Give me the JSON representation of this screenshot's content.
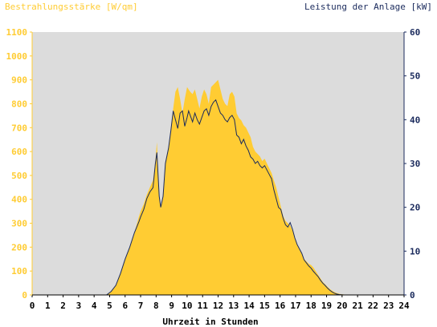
{
  "colors": {
    "irradiance": "#ffcc33",
    "power": "#1a2a5c",
    "plot_bg": "#dcdcdc",
    "left_axis_text": "#ffcc33",
    "right_axis_text": "#1a2a5c"
  },
  "chart_data": {
    "type": "area",
    "left_title": "Bestrahlungsstärke [W/qm]",
    "right_title": "Leistung der Anlage [kW]",
    "xlabel": "Uhrzeit in Stunden",
    "xlim": [
      0,
      24
    ],
    "y_left_lim": [
      0,
      1100
    ],
    "y_right_lim": [
      0,
      60
    ],
    "x_ticks": [
      "0",
      "1",
      "2",
      "3",
      "4",
      "5",
      "6",
      "7",
      "8",
      "9",
      "10",
      "11",
      "12",
      "13",
      "14",
      "15",
      "16",
      "17",
      "18",
      "19",
      "20",
      "21",
      "22",
      "23",
      "24"
    ],
    "y_left_ticks": [
      "0",
      "100",
      "200",
      "300",
      "400",
      "500",
      "600",
      "700",
      "800",
      "900",
      "1000",
      "1100"
    ],
    "y_right_ticks": [
      "0",
      "10",
      "20",
      "30",
      "40",
      "50",
      "60"
    ],
    "grid": false,
    "series": [
      {
        "name": "Bestrahlungsstärke [W/qm]",
        "axis": "left",
        "style": "filled-area",
        "x": [
          0,
          4.8,
          5.1,
          5.4,
          5.7,
          6.0,
          6.3,
          6.6,
          6.9,
          7.0,
          7.2,
          7.4,
          7.6,
          7.8,
          7.95,
          8.05,
          8.2,
          8.3,
          8.45,
          8.6,
          8.8,
          8.95,
          9.1,
          9.25,
          9.4,
          9.55,
          9.7,
          9.85,
          10.0,
          10.1,
          10.2,
          10.35,
          10.5,
          10.65,
          10.8,
          10.95,
          11.1,
          11.25,
          11.4,
          11.55,
          11.7,
          11.85,
          12.0,
          12.15,
          12.3,
          12.45,
          12.6,
          12.75,
          12.9,
          13.05,
          13.2,
          13.35,
          13.5,
          13.65,
          13.8,
          13.95,
          14.1,
          14.25,
          14.4,
          14.55,
          14.7,
          14.85,
          15.0,
          15.15,
          15.3,
          15.45,
          15.6,
          15.75,
          15.9,
          16.05,
          16.2,
          16.35,
          16.5,
          16.65,
          16.8,
          16.95,
          17.1,
          17.25,
          17.4,
          17.55,
          17.7,
          17.85,
          18.0,
          18.15,
          18.3,
          18.45,
          18.6,
          18.75,
          18.9,
          19.05,
          19.2,
          19.35,
          19.5,
          19.65,
          19.8,
          19.95,
          20.1,
          20.3,
          24
        ],
        "y": [
          0,
          0,
          15,
          40,
          90,
          150,
          200,
          260,
          330,
          350,
          380,
          420,
          450,
          480,
          560,
          640,
          420,
          360,
          420,
          560,
          620,
          700,
          780,
          850,
          870,
          820,
          760,
          820,
          870,
          860,
          850,
          840,
          860,
          820,
          780,
          830,
          860,
          840,
          800,
          870,
          880,
          890,
          900,
          860,
          820,
          800,
          790,
          840,
          850,
          830,
          760,
          740,
          730,
          710,
          700,
          680,
          660,
          620,
          600,
          590,
          580,
          560,
          570,
          550,
          530,
          510,
          480,
          450,
          410,
          370,
          330,
          310,
          300,
          290,
          270,
          240,
          210,
          190,
          170,
          150,
          140,
          130,
          125,
          115,
          100,
          85,
          70,
          55,
          45,
          35,
          25,
          18,
          12,
          8,
          5,
          3,
          2,
          0,
          0
        ]
      },
      {
        "name": "Leistung der Anlage [kW]",
        "axis": "right",
        "style": "line",
        "x": [
          0,
          4.8,
          5.1,
          5.4,
          5.7,
          6.0,
          6.3,
          6.6,
          6.9,
          7.0,
          7.2,
          7.4,
          7.6,
          7.8,
          7.95,
          8.05,
          8.2,
          8.3,
          8.45,
          8.6,
          8.8,
          8.95,
          9.1,
          9.25,
          9.4,
          9.55,
          9.7,
          9.85,
          10.0,
          10.1,
          10.2,
          10.35,
          10.5,
          10.65,
          10.8,
          10.95,
          11.1,
          11.25,
          11.4,
          11.55,
          11.7,
          11.85,
          12.0,
          12.15,
          12.3,
          12.45,
          12.6,
          12.75,
          12.9,
          13.05,
          13.2,
          13.35,
          13.5,
          13.65,
          13.8,
          13.95,
          14.1,
          14.25,
          14.4,
          14.55,
          14.7,
          14.85,
          15.0,
          15.15,
          15.3,
          15.45,
          15.6,
          15.75,
          15.9,
          16.05,
          16.2,
          16.35,
          16.5,
          16.65,
          16.8,
          16.95,
          17.1,
          17.25,
          17.4,
          17.55,
          17.7,
          17.85,
          18.0,
          18.15,
          18.3,
          18.45,
          18.6,
          18.75,
          18.9,
          19.05,
          19.2,
          19.35,
          19.5,
          19.65,
          19.8,
          19.95,
          20.1,
          20.3,
          24
        ],
        "y": [
          0,
          0,
          0.8,
          2.2,
          4.9,
          8.2,
          10.9,
          14.2,
          16.8,
          17.8,
          19.5,
          22.0,
          23.5,
          24.5,
          30.0,
          32.5,
          22.5,
          20.0,
          22.5,
          30.0,
          33.5,
          37.5,
          42.0,
          40.0,
          38.0,
          41.5,
          42.0,
          38.5,
          40.5,
          42.0,
          41.0,
          39.5,
          41.5,
          40.0,
          39.0,
          40.5,
          42.0,
          42.5,
          41.0,
          43.0,
          44.0,
          44.5,
          43.0,
          41.5,
          41.0,
          40.0,
          39.5,
          40.5,
          41.0,
          40.0,
          36.5,
          36.0,
          34.5,
          35.5,
          34.0,
          33.0,
          31.5,
          31.0,
          30.0,
          30.5,
          29.5,
          29.0,
          29.5,
          28.5,
          27.5,
          26.5,
          24.0,
          22.0,
          20.0,
          19.5,
          17.5,
          16.0,
          15.5,
          16.5,
          15.0,
          13.0,
          11.5,
          10.5,
          9.5,
          8.0,
          7.3,
          6.6,
          6.1,
          5.4,
          4.8,
          4.2,
          3.4,
          2.7,
          2.2,
          1.6,
          1.1,
          0.7,
          0.4,
          0.2,
          0.1,
          0.05,
          0,
          0,
          0
        ]
      }
    ]
  }
}
